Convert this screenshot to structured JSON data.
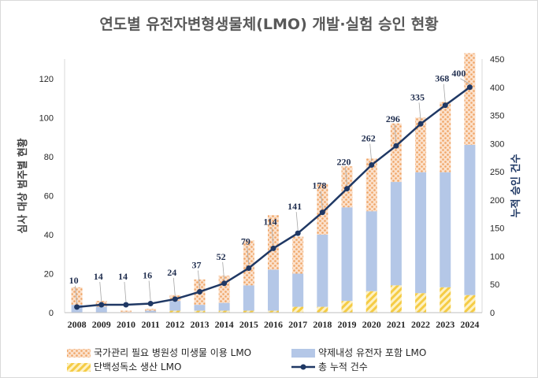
{
  "chart_data": {
    "type": "bar",
    "title": "연도별 유전자변형생물체(LMO) 개발·실험 승인 현황",
    "ylabel_left": "심사 대상 범주별 현황",
    "ylabel_right": "누적 승인 건수",
    "categories": [
      "2008",
      "2009",
      "2010",
      "2011",
      "2012",
      "2013",
      "2014",
      "2015",
      "2016",
      "2017",
      "2018",
      "2019",
      "2020",
      "2021",
      "2022",
      "2023",
      "2024"
    ],
    "ylim_left": [
      0,
      130
    ],
    "yticks_left": [
      0,
      20,
      40,
      60,
      80,
      100,
      120
    ],
    "ylim_right": [
      0,
      450
    ],
    "yticks_right": [
      0,
      50,
      100,
      150,
      200,
      250,
      300,
      350,
      400,
      450
    ],
    "series": [
      {
        "name": "단백성독소 생산 LMO",
        "kind": "stacked-bar",
        "axis": "left",
        "color": "#f7d35a",
        "values": [
          0,
          0,
          0,
          0,
          1,
          1,
          1,
          1,
          1,
          3,
          3,
          6,
          11,
          14,
          10,
          13,
          9
        ]
      },
      {
        "name": "약제내성 유전자 포함 LMO",
        "kind": "stacked-bar",
        "axis": "left",
        "color": "#b4c7e7",
        "values": [
          4,
          3,
          0,
          1,
          5,
          3,
          4,
          13,
          21,
          17,
          37,
          48,
          41,
          53,
          62,
          59,
          77
        ]
      },
      {
        "name": "국가관리 필요 병원성 미생물 이용 LMO",
        "kind": "stacked-bar",
        "axis": "left",
        "color": "#f4b183",
        "values": [
          9,
          3,
          1,
          1,
          3,
          13,
          14,
          23,
          28,
          19,
          26,
          21,
          27,
          30,
          28,
          36,
          47
        ]
      },
      {
        "name": "총 누적 건수",
        "kind": "line",
        "axis": "right",
        "color": "#1f3864",
        "values": [
          10,
          14,
          14,
          16,
          24,
          37,
          52,
          79,
          114,
          141,
          178,
          220,
          262,
          296,
          335,
          368,
          400
        ]
      }
    ],
    "legend": [
      {
        "label": "국가관리 필요 병원성 미생물 이용 LMO",
        "swatch": "hatch-orange"
      },
      {
        "label": "약제내성 유전자 포함 LMO",
        "swatch": "solid-blue"
      },
      {
        "label": "단백성독소 생산 LMO",
        "swatch": "hatch-yellow"
      },
      {
        "label": "총 누적 건수",
        "swatch": "line-marker"
      }
    ],
    "legend_position": "bottom"
  }
}
